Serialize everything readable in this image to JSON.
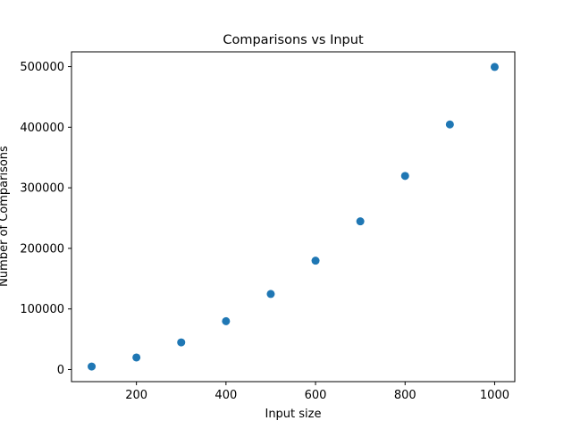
{
  "chart_data": {
    "type": "scatter",
    "title": "Comparisons vs Input",
    "xlabel": "Input size",
    "ylabel": "Number of Comparisons",
    "x": [
      100,
      200,
      300,
      400,
      500,
      600,
      700,
      800,
      900,
      1000
    ],
    "y": [
      4950,
      19900,
      44850,
      79800,
      124750,
      179700,
      244650,
      319600,
      404550,
      499500
    ],
    "xlim": [
      55,
      1045
    ],
    "ylim": [
      -19970,
      524420
    ],
    "xticks": [
      200,
      400,
      600,
      800,
      1000
    ],
    "xtick_labels": [
      "200",
      "400",
      "600",
      "800",
      "1000"
    ],
    "yticks": [
      0,
      100000,
      200000,
      300000,
      400000,
      500000
    ],
    "ytick_labels": [
      "0",
      "100000",
      "200000",
      "300000",
      "400000",
      "500000"
    ],
    "marker_color": "#1f77b4",
    "grid": false,
    "legend": "none"
  }
}
